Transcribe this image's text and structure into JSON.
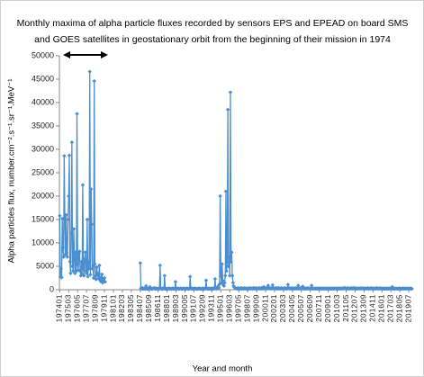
{
  "chart_data": {
    "type": "line",
    "title": [
      "Monthly maxima of alpha particle fluxes recorded by sensors EPS and EPEAD on board SMS",
      "and GOES satellites in geostationary orbit from the beginning of their mission in 1974"
    ],
    "xlabel": "Year and month",
    "ylabel": "Alpha particles flux, number.cm⁻².s⁻¹.sr⁻¹.MeV⁻¹",
    "ylim": [
      0,
      50000
    ],
    "yticks": [
      0,
      5000,
      10000,
      15000,
      20000,
      25000,
      30000,
      35000,
      40000,
      45000,
      50000
    ],
    "grid": false,
    "color": "#4a8fd0",
    "categories": [
      "197401",
      null,
      null,
      null,
      null,
      null,
      null,
      null,
      null,
      null,
      null,
      null,
      null,
      null,
      "197503",
      null,
      null,
      null,
      null,
      null,
      null,
      null,
      null,
      null,
      null,
      null,
      null,
      null,
      "197605",
      null,
      null,
      null,
      null,
      null,
      null,
      null,
      null,
      null,
      null,
      null,
      null,
      null,
      "197707",
      null,
      null,
      null,
      null,
      null,
      null,
      null,
      null,
      null,
      null,
      null,
      null,
      null,
      "197809",
      null,
      null,
      null,
      null,
      null,
      null,
      null,
      null,
      null,
      null,
      null,
      null,
      null,
      "197911",
      null,
      null,
      null,
      null,
      null,
      null,
      null,
      null,
      null,
      null,
      null,
      null,
      null,
      "198101",
      null,
      null,
      null,
      null,
      null,
      null,
      null,
      null,
      null,
      null,
      null,
      null,
      null,
      "198203",
      null,
      null,
      null,
      null,
      null,
      null,
      null,
      null,
      null,
      null,
      null,
      null,
      null,
      "198305",
      null,
      null,
      null,
      null,
      null,
      null,
      null,
      null,
      null,
      null,
      null,
      null,
      null,
      "198407",
      null,
      null,
      null,
      null,
      null,
      null,
      null,
      null,
      null,
      null,
      null,
      null,
      null,
      "198509",
      null,
      null,
      null,
      null,
      null,
      null,
      null,
      null,
      null,
      null,
      null,
      null,
      null,
      "198611",
      null,
      null,
      null,
      null,
      null,
      null,
      null,
      null,
      null,
      null,
      null,
      null,
      null,
      "198801",
      null,
      null,
      null,
      null,
      null,
      null,
      null,
      null,
      null,
      null,
      null,
      null,
      null,
      "198903",
      null,
      null,
      null,
      null,
      null,
      null,
      null,
      null,
      null,
      null,
      null,
      null,
      null,
      "199005",
      null,
      null,
      null,
      null,
      null,
      null,
      null,
      null,
      null,
      null,
      null,
      null,
      null,
      "199107",
      null,
      null,
      null,
      null,
      null,
      null,
      null,
      null,
      null,
      null,
      null,
      null,
      null,
      "199209",
      null,
      null,
      null,
      null,
      null,
      null,
      null,
      null,
      null,
      null,
      null,
      null,
      null,
      "199311",
      null,
      null,
      null,
      null,
      null,
      null,
      null,
      null,
      null,
      null,
      null,
      null,
      null,
      "199501",
      null,
      null,
      null,
      null,
      null,
      null,
      null,
      null,
      null,
      null,
      null,
      null,
      null,
      "199603",
      null,
      null,
      null,
      null,
      null,
      null,
      null,
      null,
      null,
      null,
      null,
      null,
      null,
      "199705",
      null,
      null,
      null,
      null,
      null,
      null,
      null,
      null,
      null,
      null,
      null,
      null,
      null,
      "199807",
      null,
      null,
      null,
      null,
      null,
      null,
      null,
      null,
      null,
      null,
      null,
      null,
      null,
      "199909",
      null,
      null,
      null,
      null,
      null,
      null,
      null,
      null,
      null,
      null,
      null,
      null,
      null,
      "200011",
      null,
      null,
      null,
      null,
      null,
      null,
      null,
      null,
      null,
      null,
      null,
      null,
      null,
      "200201",
      null,
      null,
      null,
      null,
      null,
      null,
      null,
      null,
      null,
      null,
      null,
      null,
      null,
      "200303",
      null,
      null,
      null,
      null,
      null,
      null,
      null,
      null,
      null,
      null,
      null,
      null,
      null,
      "200405",
      null,
      null,
      null,
      null,
      null,
      null,
      null,
      null,
      null,
      null,
      null,
      null,
      null,
      "200507",
      null,
      null,
      null,
      null,
      null,
      null,
      null,
      null,
      null,
      null,
      null,
      null,
      null,
      "200609",
      null,
      null,
      null,
      null,
      null,
      null,
      null,
      null,
      null,
      null,
      null,
      null,
      null,
      "200711",
      null,
      null,
      null,
      null,
      null,
      null,
      null,
      null,
      null,
      null,
      null,
      null,
      null,
      "200901",
      null,
      null,
      null,
      null,
      null,
      null,
      null,
      null,
      null,
      null,
      null,
      null,
      null,
      "201003",
      null,
      null,
      null,
      null,
      null,
      null,
      null,
      null,
      null,
      null,
      null,
      null,
      null,
      "201105",
      null,
      null,
      null,
      null,
      null,
      null,
      null,
      null,
      null,
      null,
      null,
      null,
      null,
      "201207",
      null,
      null,
      null,
      null,
      null,
      null,
      null,
      null,
      null,
      null,
      null,
      null,
      null,
      "201309",
      null,
      null,
      null,
      null,
      null,
      null,
      null,
      null,
      null,
      null,
      null,
      null,
      null,
      "201411",
      null,
      null,
      null,
      null,
      null,
      null,
      null,
      null,
      null,
      null,
      null,
      null,
      null,
      "201601",
      null,
      null,
      null,
      null,
      null,
      null,
      null,
      null,
      null,
      null,
      null,
      null,
      null,
      "201703",
      null,
      null,
      null,
      null,
      null,
      null,
      null,
      null,
      null,
      null,
      null,
      null,
      null,
      "201805",
      null,
      null,
      null,
      null,
      null,
      null,
      null,
      null,
      null,
      null,
      null,
      null,
      null,
      "201907",
      null,
      null,
      null,
      null,
      null
    ],
    "values": [
      15800,
      2800,
      4500,
      2600,
      15200,
      9000,
      7000,
      28600,
      15400,
      7500,
      16000,
      8000,
      7000,
      15000,
      20000,
      28700,
      6000,
      3500,
      12000,
      31500,
      5000,
      4000,
      13000,
      6500,
      3500,
      8000,
      4000,
      37600,
      5500,
      4200,
      7800,
      8200,
      4000,
      3000,
      6000,
      3200,
      22400,
      4500,
      3000,
      6500,
      8000,
      4000,
      3500,
      15000,
      2800,
      6000,
      4500,
      46600,
      3200,
      21500,
      14000,
      4500,
      5000,
      2500,
      44600,
      5500,
      3000,
      2200,
      4800,
      3500,
      3000,
      2400,
      5200,
      2100,
      1800,
      2600,
      3300,
      1500,
      2200,
      1900,
      2500,
      1700,
      null,
      null,
      null,
      null,
      null,
      null,
      null,
      null,
      null,
      null,
      null,
      null,
      null,
      null,
      null,
      null,
      null,
      null,
      null,
      null,
      null,
      null,
      null,
      null,
      null,
      null,
      null,
      null,
      null,
      null,
      null,
      null,
      null,
      null,
      null,
      null,
      null,
      null,
      null,
      null,
      null,
      null,
      null,
      null,
      null,
      null,
      null,
      null,
      null,
      null,
      null,
      null,
      null,
      null,
      5700,
      300,
      200,
      400,
      150,
      250,
      200,
      300,
      150,
      800,
      250,
      200,
      150,
      300,
      200,
      600,
      250,
      200,
      150,
      200,
      300,
      250,
      400,
      200,
      150,
      300,
      250,
      200,
      150,
      200,
      300,
      5200,
      250,
      200,
      150,
      300,
      200,
      250,
      3000,
      200,
      150,
      250,
      200,
      150,
      250,
      300,
      200,
      250,
      150,
      200,
      300,
      250,
      200,
      150,
      250,
      1700,
      200,
      150,
      300,
      250,
      200,
      150,
      250,
      300,
      200,
      150,
      200,
      250,
      300,
      200,
      150,
      250,
      200,
      300,
      250,
      200,
      150,
      250,
      2800,
      200,
      250,
      300,
      200,
      150,
      250,
      200,
      300,
      250,
      200,
      150,
      200,
      250,
      300,
      200,
      250,
      150,
      200,
      250,
      300,
      200,
      150,
      250,
      300,
      2000,
      250,
      200,
      150,
      300,
      200,
      250,
      200,
      150,
      300,
      250,
      200,
      250,
      300,
      2300,
      250,
      200,
      300,
      500,
      800,
      400,
      1200,
      20000,
      3000,
      1500,
      5500,
      2000,
      1000,
      800,
      1500,
      3000,
      21000,
      4000,
      6000,
      38500,
      5000,
      7000,
      3000,
      42200,
      6000,
      8000,
      3000,
      1500,
      800,
      500,
      400,
      300,
      250,
      300,
      200,
      350,
      150,
      300,
      200,
      250,
      400,
      200,
      300,
      250,
      200,
      350,
      250,
      300,
      200,
      150,
      300,
      250,
      200,
      350,
      300,
      200,
      300,
      250,
      200,
      400,
      250,
      300,
      200,
      350,
      250,
      200,
      300,
      250,
      350,
      300,
      250,
      200,
      400,
      300,
      250,
      600,
      300,
      250,
      200,
      350,
      300,
      250,
      900,
      400,
      300,
      250,
      350,
      200,
      300,
      1000,
      350,
      300,
      250,
      300,
      350,
      200,
      300,
      250,
      400,
      300,
      250,
      200,
      300,
      350,
      300,
      250,
      200,
      300,
      350,
      250,
      300,
      200,
      250,
      1100,
      400,
      300,
      250,
      300,
      200,
      350,
      300,
      250,
      200,
      300,
      250,
      350,
      300,
      200,
      300,
      900,
      250,
      200,
      300,
      350,
      250,
      300,
      700,
      250,
      200,
      300,
      250,
      200,
      300,
      250,
      350,
      200,
      300,
      250,
      200,
      300,
      900,
      250,
      200,
      250,
      300,
      200,
      250,
      300,
      200,
      250,
      300,
      200,
      250,
      300,
      200,
      250,
      200,
      300,
      250,
      200,
      300,
      200,
      250,
      200,
      300,
      250,
      200,
      250,
      200,
      300,
      200,
      250,
      200,
      300,
      250,
      200,
      250,
      300,
      250,
      200,
      300,
      250,
      200,
      300,
      250,
      200,
      300,
      250,
      200,
      300,
      300,
      250,
      400,
      300,
      250,
      200,
      300,
      350,
      250,
      300,
      200,
      250,
      350,
      300,
      250,
      400,
      300,
      250,
      350,
      300,
      200,
      250,
      300,
      250,
      300,
      250,
      200,
      300,
      350,
      250,
      300,
      200,
      250,
      300,
      250,
      200,
      250,
      300,
      350,
      250,
      200,
      300,
      250,
      350,
      300,
      250,
      200,
      300,
      250,
      200,
      300,
      250,
      350,
      300,
      250,
      200,
      300,
      250,
      300,
      250,
      200,
      250,
      300,
      200,
      250,
      200,
      300,
      250,
      200,
      250,
      200,
      300,
      250,
      200,
      300,
      250,
      600,
      200,
      250,
      300,
      200,
      250,
      200,
      250,
      200,
      250,
      200,
      300,
      200,
      250,
      200,
      250,
      200,
      300,
      250,
      200,
      250,
      200,
      300,
      250,
      200,
      250,
      200,
      300,
      250,
      200,
      250,
      200
    ]
  }
}
